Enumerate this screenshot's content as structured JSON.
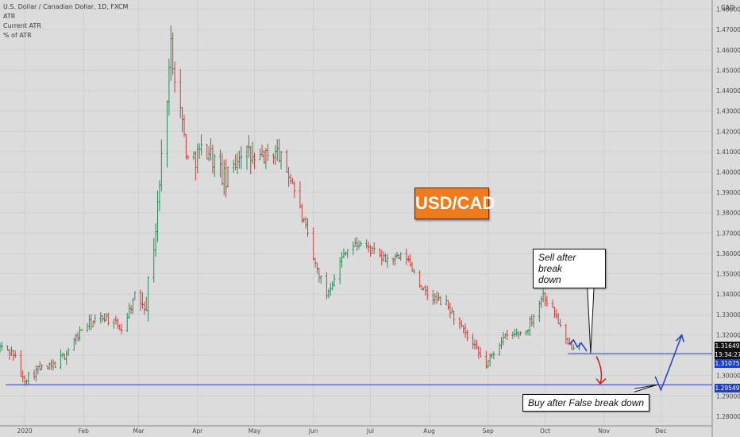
{
  "header": {
    "symbol_line": "U.S. Dollar / Canadian Dollar, 1D, FXCM",
    "indicators": [
      "ATR",
      "Current ATR",
      "% of ATR"
    ]
  },
  "currency_label": "CAD",
  "symbol_badge": "USD/CAD",
  "annotations": {
    "sell": [
      "Sell after break",
      "down"
    ],
    "buy": "Buy after False break down"
  },
  "price_tags": {
    "last_price": "1.31649",
    "countdown": "13:34:27",
    "level_1": "1.31075",
    "level_2": "1.29549"
  },
  "colors": {
    "up": "#2e8b57",
    "down": "#c8413c",
    "level_line": "#1f3fc4",
    "forecast_up": "#1f3fc4",
    "forecast_down": "#c8201b",
    "badge": "#f07b1c"
  },
  "chart_data": {
    "type": "ohlc",
    "y_axis": {
      "ticks": [
        1.28,
        1.29,
        1.3,
        1.31,
        1.32,
        1.33,
        1.34,
        1.35,
        1.36,
        1.37,
        1.38,
        1.39,
        1.4,
        1.41,
        1.42,
        1.43,
        1.44,
        1.45,
        1.46,
        1.47,
        1.48
      ],
      "tick_labels": [
        "1.28000",
        "1.29000",
        "1.30000",
        "1.31000",
        "1.32000",
        "1.33000",
        "1.34000",
        "1.35000",
        "1.36000",
        "1.37000",
        "1.38000",
        "1.39000",
        "1.40000",
        "1.41000",
        "1.42000",
        "1.43000",
        "1.44000",
        "1.45000",
        "1.46000",
        "1.47000",
        "1.48000"
      ],
      "range": [
        1.2753,
        1.4845
      ]
    },
    "x_axis": {
      "range": [
        "2019-12-19",
        "2020-12-28"
      ],
      "ticks": [
        {
          "date": "2020-01-01",
          "label": "2020"
        },
        {
          "date": "2020-02-01",
          "label": "Feb"
        },
        {
          "date": "2020-03-01",
          "label": "Mar"
        },
        {
          "date": "2020-04-01",
          "label": "Apr"
        },
        {
          "date": "2020-05-01",
          "label": "May"
        },
        {
          "date": "2020-06-01",
          "label": "Jun"
        },
        {
          "date": "2020-07-01",
          "label": "Jul"
        },
        {
          "date": "2020-08-01",
          "label": "Aug"
        },
        {
          "date": "2020-09-01",
          "label": "Sep"
        },
        {
          "date": "2020-10-01",
          "label": "Oct"
        },
        {
          "date": "2020-11-01",
          "label": "Nov"
        },
        {
          "date": "2020-12-01",
          "label": "Dec"
        }
      ]
    },
    "series_start": "2019-12-19",
    "series_end": "2020-10-19",
    "close_anchors": [
      [
        "2019-12-19",
        1.314
      ],
      [
        "2019-12-26",
        1.311
      ],
      [
        "2019-12-31",
        1.298
      ],
      [
        "2020-01-08",
        1.303
      ],
      [
        "2020-01-15",
        1.304
      ],
      [
        "2020-01-22",
        1.31
      ],
      [
        "2020-02-01",
        1.324
      ],
      [
        "2020-02-12",
        1.329
      ],
      [
        "2020-02-21",
        1.323
      ],
      [
        "2020-02-28",
        1.339
      ],
      [
        "2020-03-05",
        1.337
      ],
      [
        "2020-03-10",
        1.372
      ],
      [
        "2020-03-18",
        1.462
      ],
      [
        "2020-03-27",
        1.405
      ],
      [
        "2020-04-06",
        1.412
      ],
      [
        "2020-04-16",
        1.395
      ],
      [
        "2020-04-24",
        1.412
      ],
      [
        "2020-05-01",
        1.405
      ],
      [
        "2020-05-13",
        1.41
      ],
      [
        "2020-05-21",
        1.395
      ],
      [
        "2020-06-01",
        1.357
      ],
      [
        "2020-06-08",
        1.34
      ],
      [
        "2020-06-18",
        1.362
      ],
      [
        "2020-06-26",
        1.365
      ],
      [
        "2020-07-08",
        1.357
      ],
      [
        "2020-07-20",
        1.358
      ],
      [
        "2020-07-30",
        1.34
      ],
      [
        "2020-08-10",
        1.335
      ],
      [
        "2020-08-20",
        1.32
      ],
      [
        "2020-08-31",
        1.305
      ],
      [
        "2020-09-08",
        1.318
      ],
      [
        "2020-09-21",
        1.322
      ],
      [
        "2020-09-30",
        1.34
      ],
      [
        "2020-10-07",
        1.329
      ],
      [
        "2020-10-13",
        1.314
      ],
      [
        "2020-10-19",
        1.3165
      ]
    ],
    "levels": [
      1.31075,
      1.29549
    ],
    "last_price": 1.31649
  }
}
